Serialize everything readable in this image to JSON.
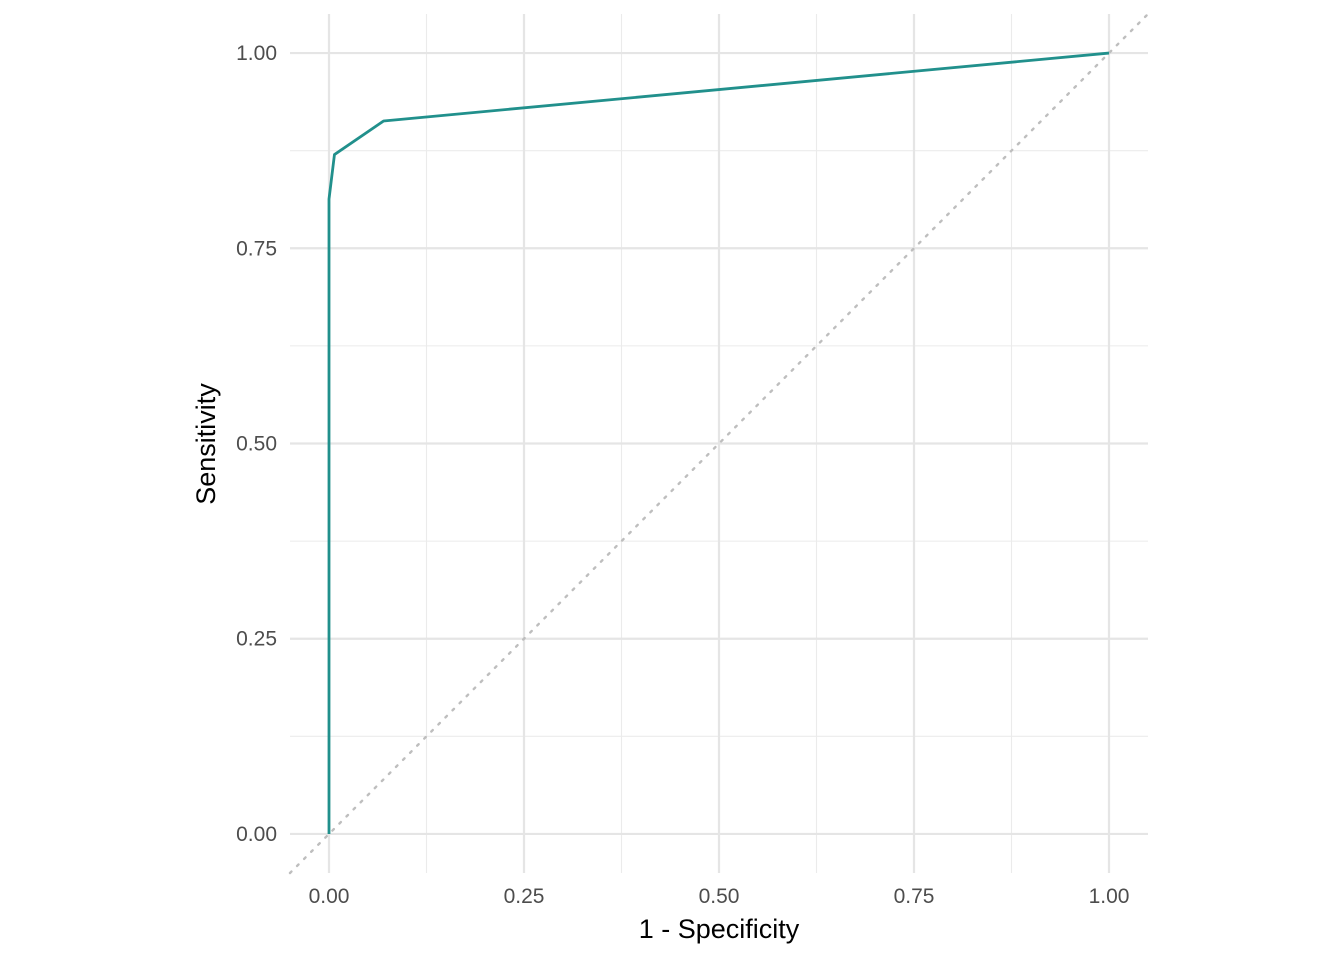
{
  "chart_data": {
    "type": "line",
    "title": "",
    "xlabel": "1 - Specificity",
    "ylabel": "Sensitivity",
    "xlim": [
      -0.05,
      1.05
    ],
    "ylim": [
      -0.05,
      1.05
    ],
    "x_ticks": [
      0,
      0.25,
      0.5,
      0.75,
      1
    ],
    "x_tick_labels": [
      "0.00",
      "0.25",
      "0.50",
      "0.75",
      "1.00"
    ],
    "y_ticks": [
      0,
      0.25,
      0.5,
      0.75,
      1
    ],
    "y_tick_labels": [
      "0.00",
      "0.25",
      "0.50",
      "0.75",
      "1.00"
    ],
    "grid": true,
    "legend": "none",
    "series": [
      {
        "color": "#21908C",
        "x": [
          0,
          0,
          0,
          0.007,
          0.07,
          1
        ],
        "y": [
          0,
          0.5,
          0.813,
          0.87,
          0.913,
          1
        ]
      }
    ],
    "reference_line": {
      "style": "dotted",
      "color": "#BEBEBE",
      "x": [
        -0.05,
        1.05
      ],
      "y": [
        -0.05,
        1.05
      ]
    }
  }
}
